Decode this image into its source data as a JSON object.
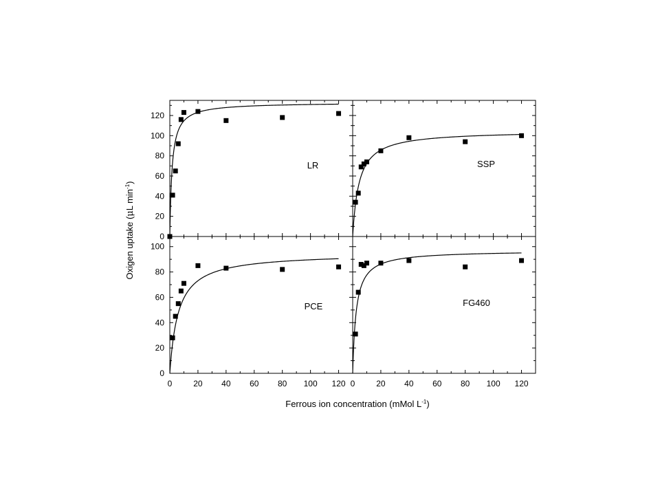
{
  "figure": {
    "ylabel_main": "Oxigen uptake (",
    "ylabel_mu": "μ",
    "ylabel_rest": "L min",
    "ylabel_sup": "-1",
    "ylabel_close": ")",
    "xlabel_main": "Ferrous ion concentration (mMol L",
    "xlabel_sup": "-1",
    "xlabel_close": ")"
  },
  "chart_data": [
    {
      "type": "scatter",
      "panel": "top-left",
      "label": "LR",
      "xlim": [
        0,
        130
      ],
      "ylim": [
        0,
        135
      ],
      "x_ticks": [],
      "y_ticks": [
        0,
        20,
        40,
        60,
        80,
        100,
        120
      ],
      "points": [
        [
          0,
          0
        ],
        [
          2,
          41
        ],
        [
          4,
          65
        ],
        [
          6,
          92
        ],
        [
          8,
          116
        ],
        [
          10,
          123
        ],
        [
          20,
          124
        ],
        [
          40,
          115
        ],
        [
          80,
          118
        ],
        [
          120,
          122
        ]
      ],
      "fit": {
        "vmax": 133,
        "km": 1.6
      }
    },
    {
      "type": "scatter",
      "panel": "top-right",
      "label": "SSP",
      "xlim": [
        0,
        130
      ],
      "ylim": [
        0,
        135
      ],
      "x_ticks": [],
      "y_ticks": [],
      "points": [
        [
          2,
          34
        ],
        [
          4,
          43
        ],
        [
          6,
          69
        ],
        [
          8,
          72
        ],
        [
          10,
          74
        ],
        [
          20,
          85
        ],
        [
          40,
          98
        ],
        [
          80,
          94
        ],
        [
          120,
          100
        ]
      ],
      "fit": {
        "vmax": 105,
        "km": 4.5
      }
    },
    {
      "type": "scatter",
      "panel": "bottom-left",
      "label": "PCE",
      "xlim": [
        0,
        130
      ],
      "ylim": [
        0,
        108
      ],
      "x_ticks": [
        0,
        20,
        40,
        60,
        80,
        100,
        120
      ],
      "y_ticks": [
        0,
        20,
        40,
        60,
        80,
        100
      ],
      "points": [
        [
          2,
          28
        ],
        [
          4,
          45
        ],
        [
          6,
          55
        ],
        [
          8,
          65
        ],
        [
          10,
          71
        ],
        [
          20,
          85
        ],
        [
          40,
          83
        ],
        [
          80,
          82
        ],
        [
          120,
          84
        ]
      ],
      "fit": {
        "vmax": 95,
        "km": 6
      }
    },
    {
      "type": "scatter",
      "panel": "bottom-right",
      "label": "FG460",
      "xlim": [
        0,
        130
      ],
      "ylim": [
        0,
        108
      ],
      "x_ticks": [
        0,
        20,
        40,
        60,
        80,
        100,
        120
      ],
      "y_ticks": [],
      "points": [
        [
          2,
          31
        ],
        [
          4,
          64
        ],
        [
          6,
          86
        ],
        [
          8,
          85
        ],
        [
          10,
          87
        ],
        [
          20,
          87
        ],
        [
          40,
          89
        ],
        [
          80,
          84
        ],
        [
          120,
          89
        ]
      ],
      "fit": {
        "vmax": 97,
        "km": 2.5
      }
    }
  ]
}
